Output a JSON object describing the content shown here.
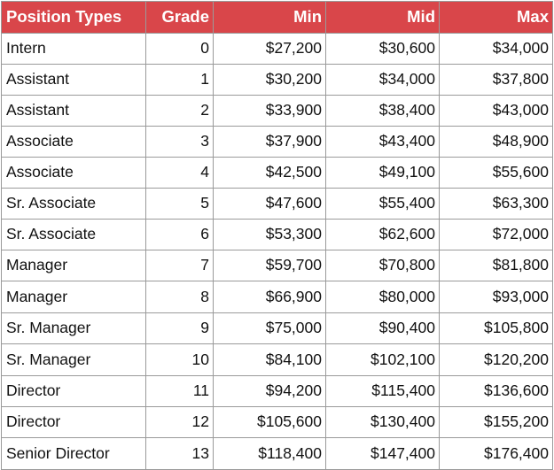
{
  "table": {
    "headers": [
      "Position Types",
      "Grade",
      "Min",
      "Mid",
      "Max"
    ],
    "rows": [
      {
        "position": "Intern",
        "grade": "0",
        "min": "$27,200",
        "mid": "$30,600",
        "max": "$34,000"
      },
      {
        "position": "Assistant",
        "grade": "1",
        "min": "$30,200",
        "mid": "$34,000",
        "max": "$37,800"
      },
      {
        "position": "Assistant",
        "grade": "2",
        "min": "$33,900",
        "mid": "$38,400",
        "max": "$43,000"
      },
      {
        "position": "Associate",
        "grade": "3",
        "min": "$37,900",
        "mid": "$43,400",
        "max": "$48,900"
      },
      {
        "position": "Associate",
        "grade": "4",
        "min": "$42,500",
        "mid": "$49,100",
        "max": "$55,600"
      },
      {
        "position": "Sr. Associate",
        "grade": "5",
        "min": "$47,600",
        "mid": "$55,400",
        "max": "$63,300"
      },
      {
        "position": "Sr. Associate",
        "grade": "6",
        "min": "$53,300",
        "mid": "$62,600",
        "max": "$72,000"
      },
      {
        "position": "Manager",
        "grade": "7",
        "min": "$59,700",
        "mid": "$70,800",
        "max": "$81,800"
      },
      {
        "position": "Manager",
        "grade": "8",
        "min": "$66,900",
        "mid": "$80,000",
        "max": "$93,000"
      },
      {
        "position": "Sr. Manager",
        "grade": "9",
        "min": "$75,000",
        "mid": "$90,400",
        "max": "$105,800"
      },
      {
        "position": "Sr. Manager",
        "grade": "10",
        "min": "$84,100",
        "mid": "$102,100",
        "max": "$120,200"
      },
      {
        "position": "Director",
        "grade": "11",
        "min": "$94,200",
        "mid": "$115,400",
        "max": "$136,600"
      },
      {
        "position": "Director",
        "grade": "12",
        "min": "$105,600",
        "mid": "$130,400",
        "max": "$155,200"
      },
      {
        "position": "Senior Director",
        "grade": "13",
        "min": "$118,400",
        "mid": "$147,400",
        "max": "$176,400"
      }
    ]
  },
  "colors": {
    "header_background": "#d9464a",
    "header_text": "#ffffff",
    "grid_line": "#9a9a9a",
    "cell_text": "#111111"
  }
}
